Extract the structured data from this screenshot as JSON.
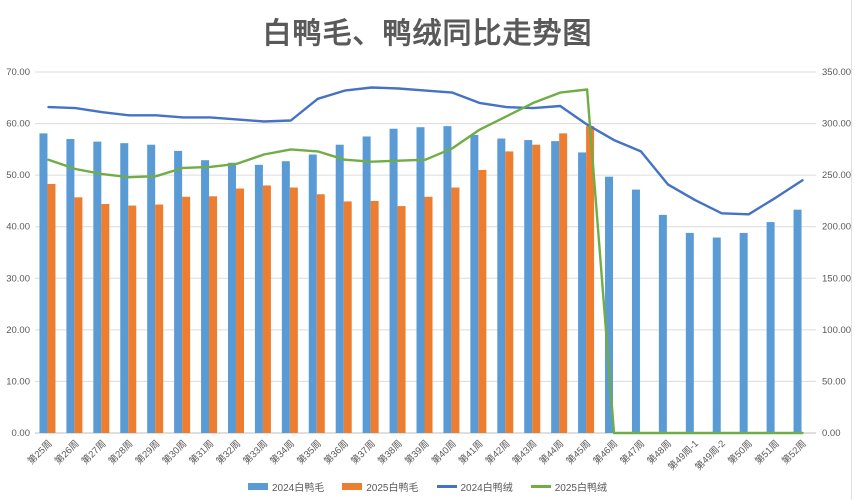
{
  "title": "白鸭毛、鸭绒同比走势图",
  "colors": {
    "bar_2024": "#5B9BD5",
    "bar_2025": "#ED7D31",
    "line_2024": "#4472C4",
    "line_2025": "#70AD47",
    "grid": "#DCDCDC",
    "axis_line": "#BFBFBF",
    "axis_text": "#595959",
    "title_text": "#595959"
  },
  "chart_data": {
    "type": "bar+line combo",
    "title": "白鸭毛、鸭绒同比走势图",
    "grid": true,
    "legend_position": "bottom",
    "categories": [
      "第25周",
      "第26周",
      "第27周",
      "第28周",
      "第29周",
      "第30周",
      "第31周",
      "第32周",
      "第33周",
      "第34周",
      "第35周",
      "第36周",
      "第37周",
      "第38周",
      "第39周",
      "第40周",
      "第41周",
      "第42周",
      "第43周",
      "第44周",
      "第45周",
      "第46周",
      "第47周",
      "第48周",
      "第49周-1",
      "第49周-2",
      "第50周",
      "第51周",
      "第52周"
    ],
    "series": [
      {
        "name": "2024白鸭毛",
        "kind": "bar",
        "axis": "left",
        "color": "#5B9BD5",
        "values": [
          58.1,
          57.0,
          56.5,
          56.2,
          55.9,
          54.7,
          52.9,
          52.4,
          52.0,
          52.7,
          54.0,
          55.9,
          57.5,
          59.0,
          59.3,
          59.5,
          57.8,
          57.1,
          56.8,
          56.6,
          54.4,
          49.7,
          47.2,
          42.3,
          38.8,
          37.9,
          38.8,
          40.9,
          43.3
        ]
      },
      {
        "name": "2025白鸭毛",
        "kind": "bar",
        "axis": "left",
        "color": "#ED7D31",
        "values": [
          48.3,
          45.7,
          44.4,
          44.1,
          44.3,
          45.8,
          45.9,
          47.4,
          48.0,
          47.6,
          46.3,
          44.9,
          45.0,
          44.0,
          45.8,
          47.6,
          51.0,
          54.6,
          55.9,
          58.1,
          59.5,
          null,
          null,
          null,
          null,
          null,
          null,
          null,
          null
        ]
      },
      {
        "name": "2024白鸭绒",
        "kind": "line",
        "axis": "right",
        "color": "#4472C4",
        "values": [
          316,
          315,
          311,
          308,
          308,
          306,
          306,
          304,
          302,
          303,
          324,
          332,
          335,
          334,
          332,
          330,
          320,
          316,
          315,
          317,
          299,
          284,
          273,
          241,
          226,
          213,
          212,
          228,
          245
        ]
      },
      {
        "name": "2025白鸭绒",
        "kind": "line",
        "axis": "right",
        "color": "#70AD47",
        "values": [
          265,
          256,
          251,
          248,
          249,
          257,
          258,
          261,
          270,
          275,
          273,
          265,
          263,
          264,
          265,
          276,
          294,
          307,
          320,
          330,
          333,
          0,
          0,
          0,
          0,
          0,
          0,
          0,
          0
        ]
      }
    ],
    "left_axis": {
      "min": 0,
      "max": 70,
      "step": 10,
      "tick_labels": [
        "0.00",
        "10.00",
        "20.00",
        "30.00",
        "40.00",
        "50.00",
        "60.00",
        "70.00"
      ]
    },
    "right_axis": {
      "min": 0,
      "max": 350,
      "step": 50,
      "tick_labels": [
        "0.00",
        "50.00",
        "100.00",
        "150.00",
        "200.00",
        "250.00",
        "300.00",
        "350.00"
      ]
    }
  }
}
